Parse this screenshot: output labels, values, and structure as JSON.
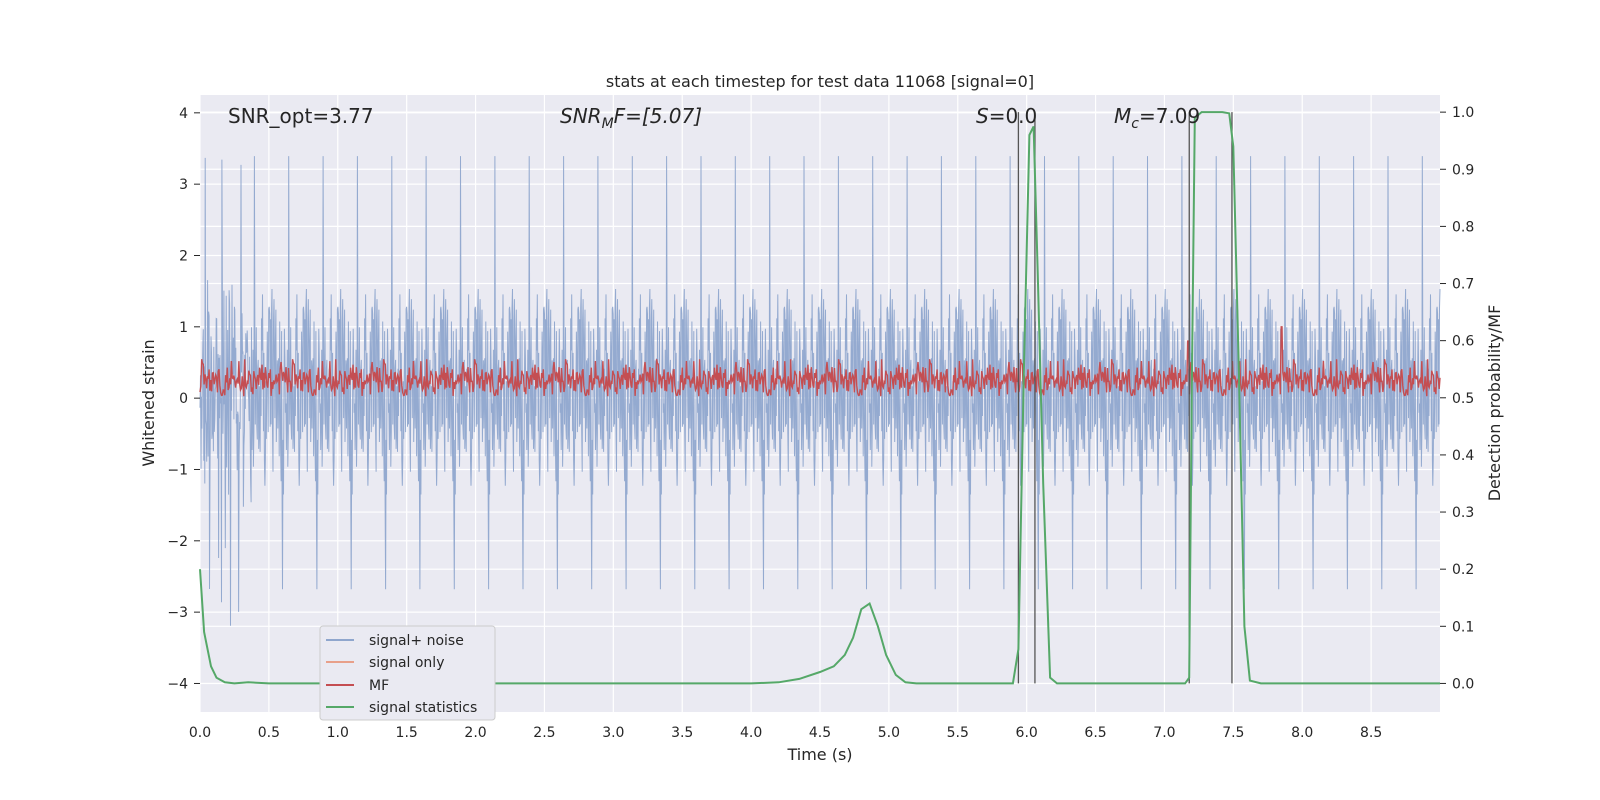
{
  "chart_data": {
    "type": "line",
    "title": "stats at each timestep for test data 11068 [signal=0]",
    "xlabel": "Time (s)",
    "ylabel_left": "Whitened strain",
    "ylabel_right": "Detection probability/MF",
    "xlim": [
      0,
      9.0
    ],
    "ylim_left": [
      -4.4,
      4.25
    ],
    "ylim_right": [
      -0.05,
      1.03
    ],
    "x_ticks": [
      0.0,
      0.5,
      1.0,
      1.5,
      2.0,
      2.5,
      3.0,
      3.5,
      4.0,
      4.5,
      5.0,
      5.5,
      6.0,
      6.5,
      7.0,
      7.5,
      8.0,
      8.5
    ],
    "x_tick_labels": [
      "0.0",
      "0.5",
      "1.0",
      "1.5",
      "2.0",
      "2.5",
      "3.0",
      "3.5",
      "4.0",
      "4.5",
      "5.0",
      "5.5",
      "6.0",
      "6.5",
      "7.0",
      "7.5",
      "8.0",
      "8.5"
    ],
    "y_left_ticks": [
      4,
      3,
      2,
      1,
      0,
      -1,
      -2,
      -3,
      -4
    ],
    "y_left_tick_labels": [
      "4",
      "3",
      "2",
      "1",
      "0",
      "−1",
      "−2",
      "−3",
      "−4"
    ],
    "y_right_ticks": [
      1.0,
      0.9,
      0.8,
      0.7,
      0.6,
      0.5,
      0.4,
      0.3,
      0.2,
      0.1,
      0.0
    ],
    "y_right_tick_labels": [
      "1.0",
      "0.9",
      "0.8",
      "0.7",
      "0.6",
      "0.5",
      "0.4",
      "0.3",
      "0.2",
      "0.1",
      "0.0"
    ],
    "grid": true,
    "legend_position": "lower-left",
    "annotations": {
      "snr_opt": "SNR_opt=3.77",
      "snr_mf_base": "SNR",
      "snr_mf_sub": "M",
      "snr_mf_rest": "F=[5.07]",
      "s_italic": "S",
      "s_rest": "=0.0",
      "mc_base": "M",
      "mc_sub": "c",
      "mc_rest": "=7.09"
    },
    "series": [
      {
        "name": "signal+ noise",
        "axis": "left",
        "color": "#8fa6cd",
        "note_render": "dense noise trace",
        "envelope": {
          "typical_amplitude": 1.5,
          "max_peak": 3.85,
          "min_peak": -3.55
        }
      },
      {
        "name": "signal only",
        "axis": "left",
        "color": "#e8a08a",
        "values": []
      },
      {
        "name": "MF",
        "axis": "left",
        "color": "#c44e52",
        "envelope": {
          "baseline": 0.02,
          "typical_max": 0.6,
          "spikes": [
            [
              7.17,
              0.8
            ],
            [
              7.85,
              1.0
            ]
          ]
        }
      },
      {
        "name": "signal statistics",
        "axis": "right",
        "color": "#55a868",
        "x": [
          0.0,
          0.03,
          0.08,
          0.12,
          0.18,
          0.25,
          0.35,
          0.5,
          1.0,
          2.0,
          3.0,
          4.0,
          4.2,
          4.35,
          4.5,
          4.6,
          4.68,
          4.74,
          4.8,
          4.86,
          4.92,
          4.98,
          5.05,
          5.12,
          5.2,
          5.5,
          5.9,
          5.94,
          5.98,
          6.02,
          6.05,
          6.08,
          6.12,
          6.17,
          6.22,
          6.5,
          7.0,
          7.15,
          7.18,
          7.2,
          7.22,
          7.27,
          7.35,
          7.42,
          7.47,
          7.5,
          7.54,
          7.58,
          7.62,
          7.7,
          8.0,
          8.5,
          9.0
        ],
        "values": [
          0.2,
          0.09,
          0.03,
          0.01,
          0.002,
          0.0,
          0.002,
          0.0,
          0.0,
          0.0,
          0.0,
          0.0,
          0.002,
          0.008,
          0.02,
          0.03,
          0.05,
          0.08,
          0.13,
          0.14,
          0.1,
          0.05,
          0.015,
          0.002,
          0.0,
          0.0,
          0.0,
          0.06,
          0.55,
          0.96,
          0.975,
          0.72,
          0.35,
          0.01,
          0.0,
          0.0,
          0.0,
          0.0,
          0.01,
          0.55,
          0.99,
          1.0,
          1.0,
          1.0,
          0.998,
          0.94,
          0.55,
          0.1,
          0.005,
          0.0,
          0.0,
          0.0,
          0.0
        ]
      }
    ],
    "vertical_markers": [
      5.94,
      6.06,
      7.18,
      7.49
    ]
  }
}
